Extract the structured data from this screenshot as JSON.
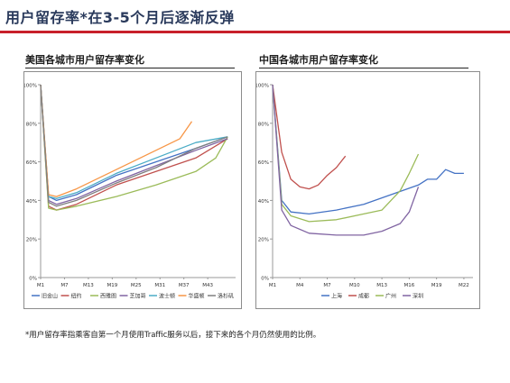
{
  "page": {
    "title": "用户留存率*在3-5个月后逐渐反弹",
    "footnote": "*用户留存率指乘客自第一个月使用Traffic服务以后，接下来的各个月仍然使用的比例。"
  },
  "colors": {
    "title_text": "#2a3a5c",
    "title_rule": "#c8202a"
  },
  "chart_data": [
    {
      "type": "line",
      "title": "美国各城市用户留存率变化",
      "xlabel": "",
      "ylabel": "",
      "ylim": [
        0,
        100
      ],
      "xlim": [
        1,
        50
      ],
      "yticks": [
        0,
        20,
        40,
        60,
        80,
        100
      ],
      "ytick_labels": [
        "0%",
        "20%",
        "40%",
        "60%",
        "80%",
        "100%"
      ],
      "xticks": [
        1,
        7,
        13,
        19,
        25,
        31,
        37,
        43
      ],
      "xtick_labels": [
        "M1",
        "M7",
        "M13",
        "M19",
        "M25",
        "M31",
        "M37",
        "M43"
      ],
      "grid": false,
      "legend_position": "bottom",
      "series": [
        {
          "name": "旧金山",
          "color": "#4472c4",
          "points": [
            [
              1,
              100
            ],
            [
              3,
              42
            ],
            [
              5,
              40
            ],
            [
              10,
              43
            ],
            [
              20,
              53
            ],
            [
              30,
              60
            ],
            [
              40,
              67
            ],
            [
              48,
              73
            ]
          ]
        },
        {
          "name": "纽约",
          "color": "#c0504d",
          "points": [
            [
              1,
              100
            ],
            [
              3,
              37
            ],
            [
              5,
              35
            ],
            [
              10,
              38
            ],
            [
              20,
              48
            ],
            [
              30,
              55
            ],
            [
              40,
              62
            ],
            [
              48,
              72
            ]
          ]
        },
        {
          "name": "西雅图",
          "color": "#9bbb59",
          "points": [
            [
              1,
              100
            ],
            [
              3,
              36
            ],
            [
              5,
              35
            ],
            [
              10,
              37
            ],
            [
              20,
              42
            ],
            [
              30,
              48
            ],
            [
              40,
              55
            ],
            [
              45,
              62
            ],
            [
              48,
              73
            ]
          ]
        },
        {
          "name": "芝加哥",
          "color": "#8064a2",
          "points": [
            [
              1,
              100
            ],
            [
              3,
              40
            ],
            [
              5,
              38
            ],
            [
              10,
              41
            ],
            [
              20,
              50
            ],
            [
              30,
              58
            ],
            [
              40,
              66
            ],
            [
              48,
              72
            ]
          ]
        },
        {
          "name": "波士顿",
          "color": "#4bacc6",
          "points": [
            [
              1,
              100
            ],
            [
              3,
              42
            ],
            [
              5,
              41
            ],
            [
              10,
              44
            ],
            [
              20,
              54
            ],
            [
              30,
              62
            ],
            [
              40,
              70
            ],
            [
              48,
              73
            ]
          ]
        },
        {
          "name": "华盛顿",
          "color": "#f79646",
          "points": [
            [
              1,
              100
            ],
            [
              3,
              43
            ],
            [
              5,
              42
            ],
            [
              10,
              46
            ],
            [
              20,
              56
            ],
            [
              30,
              66
            ],
            [
              36,
              72
            ],
            [
              39,
              81
            ]
          ]
        },
        {
          "name": "洛杉矶",
          "color": "#7f7f7f",
          "points": [
            [
              1,
              100
            ],
            [
              3,
              39
            ],
            [
              5,
              37
            ],
            [
              10,
              40
            ],
            [
              20,
              49
            ],
            [
              30,
              57
            ],
            [
              40,
              67
            ],
            [
              48,
              73
            ]
          ]
        }
      ]
    },
    {
      "type": "line",
      "title": "中国各城市用户留存率变化",
      "xlabel": "",
      "ylabel": "",
      "ylim": [
        0,
        100
      ],
      "xlim": [
        1,
        23
      ],
      "yticks": [
        0,
        20,
        40,
        60,
        80,
        100
      ],
      "ytick_labels": [
        "0%",
        "20%",
        "40%",
        "60%",
        "80%",
        "100%"
      ],
      "xticks": [
        1,
        4,
        7,
        10,
        13,
        16,
        19,
        22
      ],
      "xtick_labels": [
        "M1",
        "M4",
        "M7",
        "M10",
        "M13",
        "M16",
        "M19",
        "M22"
      ],
      "grid": false,
      "legend_position": "bottom",
      "series": [
        {
          "name": "上海",
          "color": "#4472c4",
          "points": [
            [
              1,
              100
            ],
            [
              2,
              40
            ],
            [
              3,
              34
            ],
            [
              5,
              33
            ],
            [
              8,
              35
            ],
            [
              11,
              38
            ],
            [
              14,
              43
            ],
            [
              17,
              48
            ],
            [
              18,
              51
            ],
            [
              19,
              51
            ],
            [
              20,
              56
            ],
            [
              21,
              54
            ],
            [
              22,
              54
            ]
          ]
        },
        {
          "name": "成都",
          "color": "#c0504d",
          "points": [
            [
              1,
              100
            ],
            [
              2,
              65
            ],
            [
              3,
              51
            ],
            [
              4,
              47
            ],
            [
              5,
              46
            ],
            [
              6,
              48
            ],
            [
              7,
              53
            ],
            [
              8,
              57
            ],
            [
              9,
              63
            ]
          ]
        },
        {
          "name": "广州",
          "color": "#9bbb59",
          "points": [
            [
              1,
              100
            ],
            [
              2,
              38
            ],
            [
              3,
              32
            ],
            [
              5,
              29
            ],
            [
              8,
              30
            ],
            [
              11,
              33
            ],
            [
              13,
              35
            ],
            [
              15,
              45
            ],
            [
              16,
              54
            ],
            [
              17,
              64
            ]
          ]
        },
        {
          "name": "深圳",
          "color": "#8064a2",
          "points": [
            [
              1,
              100
            ],
            [
              2,
              35
            ],
            [
              3,
              27
            ],
            [
              5,
              23
            ],
            [
              8,
              22
            ],
            [
              11,
              22
            ],
            [
              13,
              24
            ],
            [
              15,
              28
            ],
            [
              16,
              34
            ],
            [
              17,
              47
            ]
          ]
        }
      ]
    }
  ]
}
